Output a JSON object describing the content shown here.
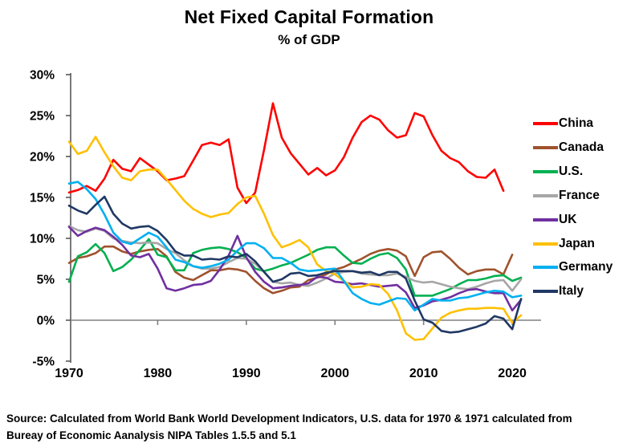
{
  "chart_data": {
    "type": "line",
    "title": "Net Fixed Capital Formation",
    "subtitle": "% of GDP",
    "x_start_year": 1970,
    "x_end_year": 2021,
    "ylim": [
      -5,
      30
    ],
    "grid": false,
    "legend_position": "right",
    "ytick_values": [
      30,
      25,
      20,
      15,
      10,
      5,
      0,
      -5
    ],
    "ytick_labels": [
      "30%",
      "25%",
      "20%",
      "15%",
      "10%",
      "5%",
      "0%",
      "-5%"
    ],
    "xtick_values": [
      1970,
      1980,
      1990,
      2000,
      2010,
      2020
    ],
    "xtick_labels": [
      "1970",
      "1980",
      "1990",
      "2000",
      "2010",
      "2020"
    ],
    "axis_color": "#595959",
    "zero_line_color": "#808080",
    "series": [
      {
        "id": "china",
        "name": "China",
        "color": "#FF0000",
        "values": [
          15.6,
          15.9,
          16.4,
          15.8,
          17.3,
          19.6,
          18.5,
          18.2,
          19.8,
          19.0,
          18.2,
          17.1,
          17.3,
          17.6,
          19.5,
          21.4,
          21.7,
          21.4,
          22.1,
          16.2,
          14.3,
          15.6,
          20.8,
          26.5,
          22.3,
          20.4,
          19.1,
          17.8,
          18.6,
          17.7,
          18.3,
          19.9,
          22.3,
          24.2,
          25.0,
          24.5,
          23.2,
          22.3,
          22.6,
          25.3,
          24.9,
          22.6,
          20.7,
          19.8,
          19.3,
          18.2,
          17.5,
          17.4,
          18.4,
          15.8,
          null,
          null
        ]
      },
      {
        "id": "canada",
        "name": "Canada",
        "color": "#A0522D",
        "values": [
          7.0,
          7.6,
          7.8,
          8.2,
          9.0,
          9.0,
          8.4,
          8.1,
          8.4,
          8.6,
          8.7,
          7.8,
          5.9,
          5.2,
          4.9,
          5.5,
          6.1,
          6.1,
          6.3,
          6.2,
          5.9,
          4.8,
          3.9,
          3.3,
          3.6,
          4.0,
          4.1,
          4.9,
          5.2,
          5.6,
          6.2,
          6.5,
          7.0,
          7.5,
          8.1,
          8.5,
          8.7,
          8.5,
          7.8,
          5.4,
          7.7,
          8.3,
          8.4,
          7.5,
          6.4,
          5.6,
          6.0,
          6.2,
          6.2,
          5.6,
          8.0,
          null
        ]
      },
      {
        "id": "us",
        "name": "U.S.",
        "color": "#00B050",
        "values": [
          4.7,
          7.8,
          8.3,
          9.3,
          8.2,
          6.0,
          6.5,
          7.4,
          8.6,
          9.9,
          8.0,
          7.7,
          6.1,
          6.1,
          8.2,
          8.6,
          8.8,
          8.9,
          8.7,
          8.3,
          7.6,
          6.3,
          6.0,
          6.3,
          6.7,
          7.0,
          7.5,
          8.0,
          8.6,
          8.9,
          8.9,
          7.9,
          7.0,
          6.9,
          7.5,
          8.0,
          8.2,
          7.6,
          6.2,
          3.0,
          3.0,
          3.0,
          3.4,
          3.8,
          4.4,
          4.9,
          4.9,
          5.1,
          5.4,
          5.5,
          4.8,
          5.2
        ]
      },
      {
        "id": "france",
        "name": "France",
        "color": "#A6A6A6",
        "values": [
          11.5,
          11.0,
          10.8,
          11.2,
          10.9,
          10.0,
          9.7,
          9.5,
          9.4,
          9.5,
          9.4,
          8.7,
          8.2,
          7.3,
          6.6,
          6.3,
          6.3,
          6.5,
          7.1,
          7.6,
          7.5,
          6.9,
          5.9,
          4.7,
          4.5,
          4.6,
          4.3,
          4.2,
          4.6,
          5.1,
          5.7,
          5.9,
          6.0,
          5.7,
          5.6,
          5.5,
          5.5,
          5.7,
          5.3,
          4.8,
          4.6,
          4.7,
          4.4,
          4.1,
          3.9,
          3.8,
          4.1,
          4.5,
          4.8,
          4.9,
          3.6,
          5.0
        ]
      },
      {
        "id": "uk",
        "name": "UK",
        "color": "#7030A0",
        "values": [
          11.4,
          10.3,
          10.9,
          11.3,
          11.0,
          10.2,
          9.2,
          7.9,
          7.7,
          8.1,
          6.3,
          3.9,
          3.6,
          3.9,
          4.3,
          4.4,
          4.8,
          6.2,
          7.9,
          10.3,
          7.7,
          5.9,
          4.7,
          3.9,
          4.0,
          4.2,
          4.3,
          4.5,
          5.3,
          5.2,
          4.7,
          4.6,
          4.4,
          4.5,
          4.3,
          4.1,
          4.2,
          4.3,
          3.4,
          1.5,
          1.8,
          2.3,
          2.5,
          2.8,
          3.3,
          3.7,
          3.8,
          3.5,
          3.3,
          3.3,
          1.2,
          2.5
        ]
      },
      {
        "id": "japan",
        "name": "Japan",
        "color": "#FFC000",
        "values": [
          21.8,
          20.3,
          20.7,
          22.4,
          20.5,
          18.8,
          17.4,
          17.1,
          18.2,
          18.4,
          18.4,
          17.2,
          15.9,
          14.6,
          13.6,
          13.0,
          12.6,
          12.9,
          13.1,
          14.2,
          15.0,
          15.2,
          13.0,
          10.4,
          8.9,
          9.3,
          9.8,
          8.9,
          6.8,
          6.0,
          5.6,
          4.8,
          4.0,
          4.1,
          4.4,
          4.3,
          3.2,
          1.2,
          -1.6,
          -2.4,
          -2.3,
          -1.0,
          0.3,
          0.9,
          1.2,
          1.4,
          1.4,
          1.5,
          1.5,
          1.4,
          -0.3,
          0.6
        ]
      },
      {
        "id": "germany",
        "name": "Germany",
        "color": "#00B0F0",
        "values": [
          16.7,
          16.9,
          16.0,
          14.8,
          12.9,
          10.7,
          9.6,
          9.3,
          10.0,
          10.7,
          10.2,
          8.9,
          7.4,
          7.1,
          6.6,
          6.4,
          6.6,
          6.9,
          7.4,
          8.5,
          9.4,
          9.4,
          8.8,
          7.6,
          7.6,
          7.0,
          6.2,
          6.0,
          6.1,
          6.2,
          6.3,
          4.8,
          3.3,
          2.6,
          2.1,
          1.9,
          2.3,
          2.7,
          2.6,
          1.2,
          1.9,
          2.6,
          2.4,
          2.4,
          2.7,
          2.8,
          3.1,
          3.4,
          3.6,
          3.5,
          2.8,
          3.0
        ]
      },
      {
        "id": "italy",
        "name": "Italy",
        "color": "#203864",
        "values": [
          14.0,
          13.4,
          13.0,
          14.1,
          15.1,
          13.0,
          11.8,
          11.2,
          11.4,
          11.5,
          10.9,
          9.8,
          8.4,
          7.9,
          7.9,
          7.4,
          7.5,
          7.4,
          7.8,
          7.7,
          8.1,
          7.2,
          5.9,
          4.7,
          5.0,
          5.7,
          5.8,
          5.4,
          5.5,
          5.8,
          6.0,
          6.0,
          6.0,
          5.8,
          5.9,
          5.5,
          5.9,
          5.9,
          5.1,
          2.4,
          0.1,
          -0.3,
          -1.3,
          -1.5,
          -1.4,
          -1.1,
          -0.8,
          -0.4,
          0.5,
          0.2,
          -1.1,
          2.6
        ]
      }
    ]
  },
  "source": {
    "line1": "Source:  Calculated from World Bank World Development Indicators, U.S. data for 1970 & 1971 calculated from",
    "line2": "Bureay of Economic Aanalysis NIPA Tables 1.5.5 and 5.1"
  }
}
